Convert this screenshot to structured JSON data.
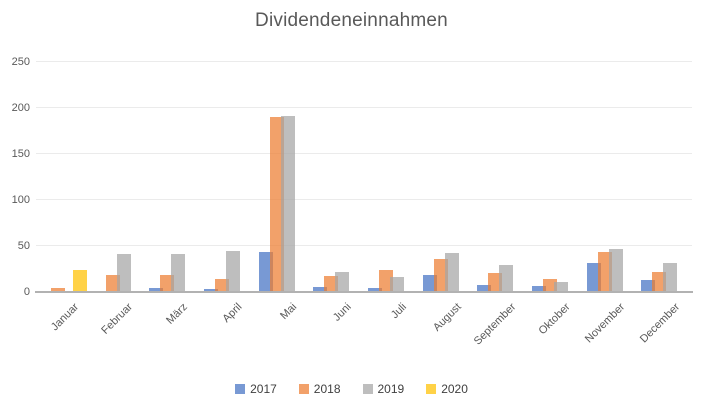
{
  "chart_data": {
    "type": "bar",
    "title": "Dividendeneinnahmen",
    "categories": [
      "Januar",
      "Februar",
      "März",
      "April",
      "Mai",
      "Juni",
      "Juli",
      "August",
      "September",
      "Oktober",
      "November",
      "December"
    ],
    "series": [
      {
        "name": "2017",
        "color": "#4472C4",
        "values": [
          0,
          0,
          4,
          3,
          43,
          5,
          4,
          18,
          8,
          7,
          31,
          13
        ]
      },
      {
        "name": "2018",
        "color": "#ED7D31",
        "values": [
          4,
          19,
          18,
          14,
          190,
          17,
          24,
          36,
          21,
          14,
          43,
          22
        ]
      },
      {
        "name": "2019",
        "color": "#A5A5A5",
        "values": [
          0,
          41,
          41,
          45,
          191,
          22,
          16,
          42,
          29,
          11,
          47,
          32
        ]
      },
      {
        "name": "2020",
        "color": "#FFC000",
        "values": [
          24,
          0,
          0,
          0,
          0,
          0,
          0,
          0,
          0,
          0,
          0,
          0
        ]
      }
    ],
    "y_ticks": [
      0,
      50,
      100,
      150,
      200,
      250
    ],
    "ylim": [
      0,
      250
    ],
    "xlabel": "",
    "ylabel": "",
    "grid": true,
    "legend_position": "bottom",
    "bar_alpha": 0.72,
    "gridline_color": "#EBEBEB",
    "axis_line_color": "#B2B2B2",
    "text_color": "#595959",
    "legend_text_color": "#404040"
  }
}
